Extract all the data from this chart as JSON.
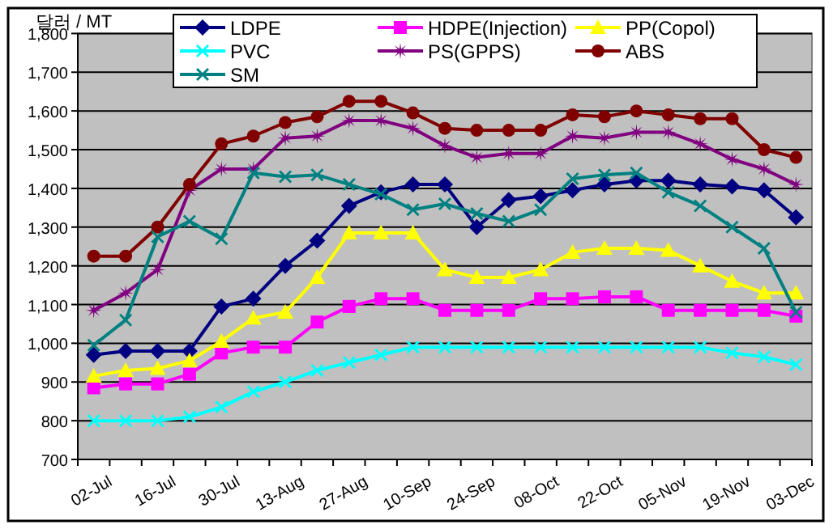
{
  "chart_data": {
    "type": "line",
    "ylabel": "달러 / MT",
    "categories": [
      "02-Jul",
      null,
      "16-Jul",
      null,
      "30-Jul",
      null,
      "13-Aug",
      null,
      "27-Aug",
      null,
      "10-Sep",
      null,
      "24-Sep",
      null,
      "08-Oct",
      null,
      "22-Oct",
      null,
      "05-Nov",
      null,
      "19-Nov",
      null,
      "03-Dec"
    ],
    "ylim": [
      700,
      1800
    ],
    "yticks": [
      700,
      800,
      900,
      {
        "value": 1000,
        "label": "1,000"
      },
      {
        "value": 1100,
        "label": "1,100"
      },
      {
        "value": 1200,
        "label": "1,200"
      },
      {
        "value": 1300,
        "label": "1,300"
      },
      {
        "value": 1400,
        "label": "1,400"
      },
      {
        "value": 1500,
        "label": "1,500"
      },
      {
        "value": 1600,
        "label": "1,600"
      },
      {
        "value": 1700,
        "label": "1,700"
      },
      {
        "value": 1800,
        "label": "1,800"
      }
    ],
    "grid": "y",
    "legend": "top",
    "series": [
      {
        "name": "LDPE",
        "color": "#000080",
        "marker": "diamond",
        "values": [
          970,
          980,
          980,
          980,
          1095,
          1115,
          1200,
          1265,
          1355,
          1390,
          1410,
          1410,
          1300,
          1370,
          1380,
          1395,
          1410,
          1420,
          1420,
          1410,
          1405,
          1395,
          1325
        ]
      },
      {
        "name": "HDPE(Injection)",
        "color": "#ff00ff",
        "marker": "square",
        "values": [
          885,
          895,
          895,
          920,
          975,
          990,
          990,
          1055,
          1095,
          1115,
          1115,
          1085,
          1085,
          1085,
          1115,
          1115,
          1120,
          1120,
          1085,
          1085,
          1085,
          1085,
          1070
        ]
      },
      {
        "name": "PP(Copol)",
        "color": "#ffff00",
        "marker": "triangle",
        "values": [
          915,
          930,
          935,
          955,
          1005,
          1065,
          1080,
          1170,
          1285,
          1285,
          1285,
          1190,
          1170,
          1170,
          1190,
          1235,
          1245,
          1245,
          1240,
          1200,
          1160,
          1130,
          1130
        ]
      },
      {
        "name": "PVC",
        "color": "#00ffff",
        "marker": "cross",
        "values": [
          800,
          800,
          800,
          810,
          835,
          875,
          900,
          930,
          950,
          970,
          990,
          990,
          990,
          990,
          990,
          990,
          990,
          990,
          990,
          990,
          975,
          965,
          945
        ]
      },
      {
        "name": "PS(GPPS)",
        "color": "#800080",
        "marker": "star",
        "values": [
          1085,
          1130,
          1190,
          1395,
          1450,
          1450,
          1530,
          1535,
          1575,
          1575,
          1555,
          1510,
          1480,
          1490,
          1490,
          1535,
          1530,
          1545,
          1545,
          1515,
          1475,
          1450,
          1410
        ]
      },
      {
        "name": "ABS",
        "color": "#800000",
        "marker": "circle",
        "values": [
          1225,
          1225,
          1300,
          1410,
          1515,
          1535,
          1570,
          1585,
          1625,
          1625,
          1595,
          1555,
          1550,
          1550,
          1550,
          1590,
          1585,
          1600,
          1590,
          1580,
          1580,
          1500,
          1480
        ]
      },
      {
        "name": "SM",
        "color": "#008080",
        "marker": "cross",
        "values": [
          995,
          1060,
          1275,
          1315,
          1270,
          1440,
          1430,
          1435,
          1410,
          1385,
          1345,
          1360,
          1335,
          1315,
          1345,
          1425,
          1435,
          1440,
          1390,
          1355,
          1300,
          1245,
          1080
        ]
      }
    ]
  }
}
